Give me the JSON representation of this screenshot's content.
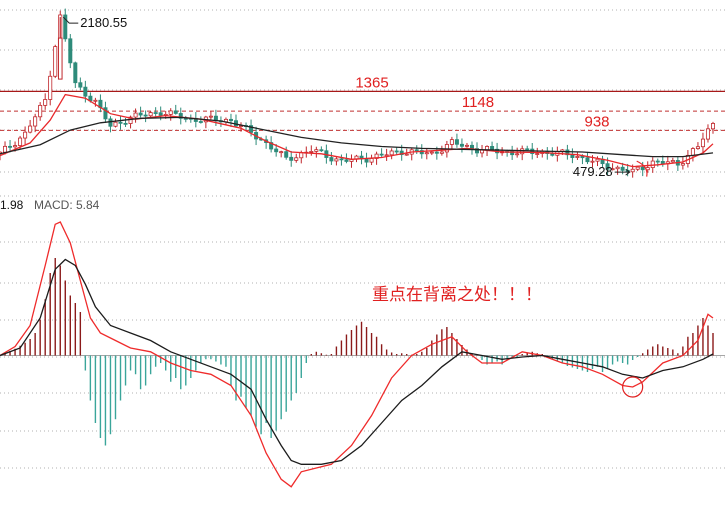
{
  "colors": {
    "background": "#ffffff",
    "grid": "#b0b0b0",
    "up": "#c0262b",
    "down": "#2e8b7a",
    "ma_short": "#e8282b",
    "ma_long": "#222222",
    "level_line": "#a81818",
    "level_dashed": "#c03030",
    "label_red": "#e02020",
    "macd_pos_bar": "#8b1a1a",
    "macd_neg_bar": "#3aa59a",
    "dif": "#ef2b2b",
    "dea": "#1c1c1c"
  },
  "header": {
    "truncated_prefix": "1.98",
    "macd_label": "MACD: 5.84"
  },
  "annotation": {
    "text": "重点在背离之处！！！"
  },
  "chart_data": [
    {
      "type": "candlestick",
      "panel": "price",
      "title": "",
      "x_range": [
        0,
        142
      ],
      "y_range": [
        360,
        2280
      ],
      "levels": [
        {
          "value": 1365,
          "label": "1365",
          "style": "solid"
        },
        {
          "value": 1148,
          "label": "1148",
          "style": "dashed"
        },
        {
          "value": 938,
          "label": "938",
          "style": "dashed"
        }
      ],
      "annotations": [
        {
          "label": "2180.55",
          "x": 12,
          "y": 2180.55
        },
        {
          "label": "479.28",
          "x": 126,
          "y": 479.28
        }
      ],
      "anchors": [
        [
          0,
          680
        ],
        [
          5,
          900
        ],
        [
          9,
          1270
        ],
        [
          12,
          2180
        ],
        [
          15,
          1440
        ],
        [
          19,
          1250
        ],
        [
          22,
          980
        ],
        [
          26,
          1080
        ],
        [
          32,
          1140
        ],
        [
          38,
          1060
        ],
        [
          46,
          1050
        ],
        [
          52,
          840
        ],
        [
          57,
          620
        ],
        [
          62,
          720
        ],
        [
          68,
          600
        ],
        [
          74,
          640
        ],
        [
          80,
          710
        ],
        [
          86,
          680
        ],
        [
          90,
          800
        ],
        [
          95,
          730
        ],
        [
          101,
          700
        ],
        [
          108,
          700
        ],
        [
          114,
          670
        ],
        [
          120,
          560
        ],
        [
          126,
          479
        ],
        [
          130,
          590
        ],
        [
          135,
          570
        ],
        [
          139,
          760
        ],
        [
          142,
          1010
        ]
      ],
      "series": [
        {
          "name": "",
          "role": "ma_short",
          "points": [
            [
              0,
              660
            ],
            [
              6,
              800
            ],
            [
              10,
              1050
            ],
            [
              13,
              1330
            ],
            [
              17,
              1290
            ],
            [
              22,
              1120
            ],
            [
              27,
              1060
            ],
            [
              33,
              1100
            ],
            [
              40,
              1060
            ],
            [
              48,
              960
            ],
            [
              53,
              820
            ],
            [
              58,
              700
            ],
            [
              64,
              680
            ],
            [
              70,
              620
            ],
            [
              76,
              640
            ],
            [
              82,
              700
            ],
            [
              88,
              720
            ],
            [
              93,
              740
            ],
            [
              100,
              700
            ],
            [
              108,
              695
            ],
            [
              115,
              670
            ],
            [
              121,
              610
            ],
            [
              126,
              540
            ],
            [
              131,
              560
            ],
            [
              136,
              590
            ],
            [
              140,
              690
            ],
            [
              142,
              790
            ]
          ]
        },
        {
          "name": "",
          "role": "ma_long",
          "points": [
            [
              0,
              680
            ],
            [
              8,
              780
            ],
            [
              14,
              940
            ],
            [
              20,
              1020
            ],
            [
              28,
              1070
            ],
            [
              36,
              1080
            ],
            [
              44,
              1040
            ],
            [
              52,
              950
            ],
            [
              60,
              860
            ],
            [
              68,
              800
            ],
            [
              76,
              760
            ],
            [
              84,
              740
            ],
            [
              92,
              730
            ],
            [
              100,
              720
            ],
            [
              108,
              710
            ],
            [
              116,
              700
            ],
            [
              124,
              670
            ],
            [
              130,
              650
            ],
            [
              136,
              650
            ],
            [
              142,
              690
            ]
          ]
        }
      ]
    },
    {
      "type": "bar",
      "panel": "macd",
      "title": "MACD: 5.84",
      "x_range": [
        0,
        142
      ],
      "y_range": [
        -190,
        210
      ],
      "histogram": [
        [
          0,
          0
        ],
        [
          1,
          3
        ],
        [
          2,
          6
        ],
        [
          3,
          9
        ],
        [
          4,
          13
        ],
        [
          5,
          17
        ],
        [
          6,
          22
        ],
        [
          7,
          30
        ],
        [
          8,
          48
        ],
        [
          9,
          75
        ],
        [
          10,
          110
        ],
        [
          11,
          130
        ],
        [
          12,
          120
        ],
        [
          13,
          100
        ],
        [
          14,
          80
        ],
        [
          15,
          70
        ],
        [
          16,
          58
        ],
        [
          17,
          -20
        ],
        [
          18,
          -60
        ],
        [
          19,
          -90
        ],
        [
          20,
          -110
        ],
        [
          21,
          -120
        ],
        [
          22,
          -105
        ],
        [
          23,
          -85
        ],
        [
          24,
          -60
        ],
        [
          25,
          -40
        ],
        [
          26,
          -20
        ],
        [
          27,
          -25
        ],
        [
          28,
          -45
        ],
        [
          29,
          -40
        ],
        [
          30,
          -25
        ],
        [
          31,
          -15
        ],
        [
          32,
          -10
        ],
        [
          33,
          -20
        ],
        [
          34,
          -35
        ],
        [
          35,
          -30
        ],
        [
          36,
          -45
        ],
        [
          37,
          -40
        ],
        [
          38,
          -30
        ],
        [
          39,
          -20
        ],
        [
          40,
          -10
        ],
        [
          41,
          -5
        ],
        [
          42,
          -5
        ],
        [
          43,
          -8
        ],
        [
          44,
          -12
        ],
        [
          45,
          -15
        ],
        [
          46,
          -40
        ],
        [
          47,
          -60
        ],
        [
          48,
          -55
        ],
        [
          49,
          -70
        ],
        [
          50,
          -80
        ],
        [
          51,
          -95
        ],
        [
          52,
          -105
        ],
        [
          53,
          -90
        ],
        [
          54,
          -110
        ],
        [
          55,
          -100
        ],
        [
          56,
          -85
        ],
        [
          57,
          -75
        ],
        [
          58,
          -60
        ],
        [
          59,
          -50
        ],
        [
          60,
          -30
        ],
        [
          61,
          -10
        ],
        [
          62,
          2
        ],
        [
          63,
          5
        ],
        [
          64,
          3
        ],
        [
          65,
          1
        ],
        [
          66,
          2
        ],
        [
          67,
          12
        ],
        [
          68,
          20
        ],
        [
          69,
          28
        ],
        [
          70,
          34
        ],
        [
          71,
          40
        ],
        [
          72,
          45
        ],
        [
          73,
          38
        ],
        [
          74,
          30
        ],
        [
          75,
          25
        ],
        [
          76,
          15
        ],
        [
          77,
          8
        ],
        [
          78,
          4
        ],
        [
          79,
          2
        ],
        [
          80,
          3
        ],
        [
          81,
          2
        ],
        [
          82,
          1
        ],
        [
          83,
          2
        ],
        [
          84,
          5
        ],
        [
          85,
          10
        ],
        [
          86,
          20
        ],
        [
          87,
          28
        ],
        [
          88,
          35
        ],
        [
          89,
          38
        ],
        [
          90,
          30
        ],
        [
          91,
          22
        ],
        [
          92,
          14
        ],
        [
          93,
          8
        ],
        [
          94,
          3
        ],
        [
          95,
          1
        ],
        [
          96,
          -6
        ],
        [
          97,
          -12
        ],
        [
          98,
          -10
        ],
        [
          99,
          -8
        ],
        [
          100,
          -12
        ],
        [
          101,
          -6
        ],
        [
          102,
          -4
        ],
        [
          103,
          -2
        ],
        [
          104,
          2
        ],
        [
          105,
          4
        ],
        [
          106,
          5
        ],
        [
          107,
          3
        ],
        [
          108,
          2
        ],
        [
          109,
          -2
        ],
        [
          110,
          -5
        ],
        [
          111,
          -8
        ],
        [
          112,
          -10
        ],
        [
          113,
          -14
        ],
        [
          114,
          -16
        ],
        [
          115,
          -18
        ],
        [
          116,
          -20
        ],
        [
          117,
          -22
        ],
        [
          118,
          -18
        ],
        [
          119,
          -15
        ],
        [
          120,
          -22
        ],
        [
          121,
          -18
        ],
        [
          122,
          -12
        ],
        [
          123,
          -8
        ],
        [
          124,
          -10
        ],
        [
          125,
          -12
        ],
        [
          126,
          -6
        ],
        [
          127,
          -2
        ],
        [
          128,
          3
        ],
        [
          129,
          8
        ],
        [
          130,
          12
        ],
        [
          131,
          15
        ],
        [
          132,
          12
        ],
        [
          133,
          10
        ],
        [
          134,
          8
        ],
        [
          135,
          3
        ],
        [
          136,
          12
        ],
        [
          137,
          25
        ],
        [
          138,
          30
        ],
        [
          139,
          40
        ],
        [
          140,
          50
        ],
        [
          141,
          40
        ],
        [
          142,
          30
        ]
      ],
      "series": [
        {
          "name": "",
          "role": "dif",
          "points": [
            [
              0,
              0
            ],
            [
              3,
              12
            ],
            [
              6,
              40
            ],
            [
              9,
              120
            ],
            [
              11,
              175
            ],
            [
              12,
              178
            ],
            [
              14,
              150
            ],
            [
              16,
              100
            ],
            [
              18,
              50
            ],
            [
              20,
              30
            ],
            [
              23,
              20
            ],
            [
              26,
              10
            ],
            [
              30,
              5
            ],
            [
              34,
              -10
            ],
            [
              38,
              -20
            ],
            [
              42,
              -25
            ],
            [
              46,
              -40
            ],
            [
              50,
              -80
            ],
            [
              53,
              -130
            ],
            [
              56,
              -165
            ],
            [
              58,
              -175
            ],
            [
              60,
              -155
            ],
            [
              63,
              -150
            ],
            [
              66,
              -145
            ],
            [
              70,
              -120
            ],
            [
              74,
              -80
            ],
            [
              78,
              -30
            ],
            [
              82,
              0
            ],
            [
              86,
              15
            ],
            [
              90,
              25
            ],
            [
              93,
              5
            ],
            [
              96,
              -10
            ],
            [
              100,
              -10
            ],
            [
              104,
              5
            ],
            [
              108,
              0
            ],
            [
              112,
              -10
            ],
            [
              116,
              -15
            ],
            [
              120,
              -25
            ],
            [
              124,
              -40
            ],
            [
              126,
              -42
            ],
            [
              128,
              -35
            ],
            [
              132,
              -10
            ],
            [
              136,
              0
            ],
            [
              139,
              20
            ],
            [
              141,
              55
            ],
            [
              142,
              50
            ]
          ]
        },
        {
          "name": "",
          "role": "dea",
          "points": [
            [
              0,
              0
            ],
            [
              4,
              10
            ],
            [
              8,
              50
            ],
            [
              11,
              115
            ],
            [
              13,
              128
            ],
            [
              15,
              120
            ],
            [
              17,
              95
            ],
            [
              19,
              65
            ],
            [
              22,
              40
            ],
            [
              26,
              30
            ],
            [
              30,
              20
            ],
            [
              34,
              5
            ],
            [
              38,
              -5
            ],
            [
              42,
              -15
            ],
            [
              46,
              -25
            ],
            [
              50,
              -45
            ],
            [
              53,
              -85
            ],
            [
              56,
              -120
            ],
            [
              58,
              -140
            ],
            [
              60,
              -145
            ],
            [
              64,
              -145
            ],
            [
              68,
              -140
            ],
            [
              72,
              -120
            ],
            [
              76,
              -90
            ],
            [
              80,
              -60
            ],
            [
              84,
              -40
            ],
            [
              88,
              -15
            ],
            [
              92,
              5
            ],
            [
              96,
              0
            ],
            [
              100,
              -5
            ],
            [
              104,
              -2
            ],
            [
              108,
              0
            ],
            [
              112,
              -5
            ],
            [
              116,
              -10
            ],
            [
              120,
              -15
            ],
            [
              124,
              -25
            ],
            [
              128,
              -30
            ],
            [
              132,
              -20
            ],
            [
              136,
              -15
            ],
            [
              140,
              -5
            ],
            [
              142,
              2
            ]
          ]
        }
      ],
      "highlight": {
        "label": "",
        "x": 126,
        "y": -42
      }
    }
  ]
}
